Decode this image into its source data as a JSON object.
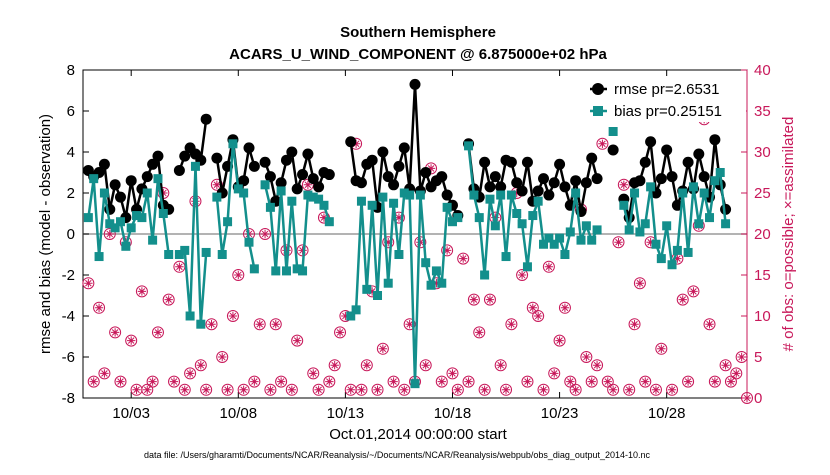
{
  "chart_data": {
    "type": "line",
    "title": "Southern Hemisphere",
    "subtitle": "ACARS_U_WIND_COMPONENT @ 6.875000e+02 hPa",
    "xlabel": "Oct.01,2014 00:00:00 start",
    "ylabel": "rmse and bias (model - observation)",
    "ylabel_right": "# of obs: o=possible; ×=assimilated",
    "footnote": "data file: /Users/gharamti/Documents/NCAR/Reanalysis/~/Documents/NCAR/Reanalysis/webpub/obs_diag_output_2014-10.nc",
    "x_tick_labels": [
      "10/03",
      "10/08",
      "10/13",
      "10/18",
      "10/23",
      "10/28"
    ],
    "x_tick_days": [
      3,
      8,
      13,
      18,
      23,
      28
    ],
    "xlim_days": [
      0.75,
      31.75
    ],
    "ylim": [
      -8,
      8
    ],
    "y_ticks": [
      -8,
      -6,
      -4,
      -2,
      0,
      2,
      4,
      6,
      8
    ],
    "ylim_right": [
      0,
      40
    ],
    "y_ticks_right": [
      0,
      5,
      10,
      15,
      20,
      25,
      30,
      35,
      40
    ],
    "grid": false,
    "legend_position": "top-right",
    "colors": {
      "rmse": "#000000",
      "bias": "#138f8c",
      "obs": "#c8185a",
      "zero_line": "#9a9a9a"
    },
    "sample_step_days": 0.25,
    "series": [
      {
        "name": "rmse pr=2.6531",
        "start_day": 1.0,
        "values": [
          3.1,
          2.8,
          3.0,
          3.4,
          1.2,
          2.4,
          1.8,
          0.8,
          2.6,
          1.2,
          2.2,
          2.8,
          3.4,
          3.8,
          1.4,
          1.2,
          null,
          3.1,
          3.8,
          4.2,
          3.9,
          3.6,
          5.6,
          null,
          3.7,
          2.0,
          3.3,
          4.6,
          2.3,
          2.6,
          4.2,
          3.3,
          null,
          3.5,
          2.8,
          1.6,
          2.5,
          3.6,
          4.0,
          2.2,
          2.9,
          3.9,
          2.7,
          2.3,
          3.0,
          2.9,
          null,
          null,
          null,
          4.5,
          2.6,
          2.5,
          3.4,
          3.6,
          1.3,
          4.0,
          2.8,
          2.4,
          3.3,
          4.2,
          2.2,
          7.3,
          2.1,
          3.0,
          2.3,
          2.6,
          2.8,
          1.9,
          1.4,
          0.9,
          null,
          4.4,
          2.2,
          1.8,
          3.5,
          2.3,
          2.8,
          2.3,
          3.6,
          3.5,
          2.5,
          2.1,
          3.5,
          1.6,
          2.1,
          2.7,
          1.9,
          2.5,
          3.4,
          2.3,
          1.4,
          2.6,
          1.1,
          2.5,
          3.7,
          2.7,
          null,
          null,
          4.1,
          null,
          1.7,
          0.8,
          2.5,
          2.6,
          3.5,
          4.5,
          2.0,
          2.7,
          4.1,
          2.8,
          1.4,
          2.1,
          3.5,
          2.2,
          3.9,
          2.8,
          1.8,
          4.6,
          2.4,
          1.2
        ]
      },
      {
        "name": "bias pr=0.25151",
        "start_day": 1.0,
        "values": [
          0.8,
          2.7,
          -1.1,
          2.0,
          0.5,
          0.3,
          0.6,
          -0.6,
          0.3,
          0.9,
          0.8,
          2.0,
          -0.3,
          2.7,
          1.0,
          -1.0,
          null,
          -1.0,
          -0.8,
          -4.0,
          3.3,
          -4.4,
          -0.9,
          null,
          1.8,
          -1.0,
          0.6,
          4.4,
          2.2,
          2.0,
          -0.4,
          -1.7,
          null,
          2.4,
          1.3,
          -1.8,
          2.1,
          -1.8,
          1.6,
          -1.7,
          -1.8,
          1.9,
          1.8,
          1.7,
          1.4,
          0.6,
          null,
          null,
          null,
          -4.0,
          -3.7,
          1.6,
          -2.7,
          1.4,
          -3.0,
          1.8,
          -2.4,
          1.5,
          -1.0,
          2.0,
          1.9,
          -7.3,
          1.9,
          -1.4,
          -2.5,
          -1.8,
          -2.4,
          1.3,
          0.6,
          0.8,
          null,
          4.3,
          1.9,
          0.8,
          -2.0,
          1.7,
          0.4,
          1.9,
          -1.1,
          1.9,
          1.0,
          0.5,
          -1.6,
          0.9,
          1.6,
          -0.5,
          -0.2,
          -0.5,
          -0.2,
          -1.0,
          0.1,
          2.0,
          -0.3,
          0.4,
          -0.3,
          0.2,
          null,
          null,
          5.0,
          null,
          1.4,
          0.2,
          2.0,
          0.1,
          0.5,
          2.3,
          -0.5,
          -1.2,
          0.4,
          -1.5,
          -0.8,
          2.0,
          -0.9,
          2.3,
          0.5,
          2.0,
          0.8,
          2.6,
          3.0,
          0.5
        ]
      }
    ],
    "obs_possible": [
      {
        "day": 1.0,
        "n": 14
      },
      {
        "day": 1.25,
        "n": 2
      },
      {
        "day": 1.5,
        "n": 11
      },
      {
        "day": 1.75,
        "n": 3
      },
      {
        "day": 2.0,
        "n": 20
      },
      {
        "day": 2.25,
        "n": 8
      },
      {
        "day": 2.5,
        "n": 2
      },
      {
        "day": 2.75,
        "n": 19
      },
      {
        "day": 3.0,
        "n": 7
      },
      {
        "day": 3.25,
        "n": 1
      },
      {
        "day": 3.5,
        "n": 13
      },
      {
        "day": 3.75,
        "n": 1
      },
      {
        "day": 4.0,
        "n": 2
      },
      {
        "day": 4.25,
        "n": 8
      },
      {
        "day": 4.5,
        "n": 25
      },
      {
        "day": 4.75,
        "n": 12
      },
      {
        "day": 5.0,
        "n": 2
      },
      {
        "day": 5.25,
        "n": 16
      },
      {
        "day": 5.5,
        "n": 1
      },
      {
        "day": 5.75,
        "n": 3
      },
      {
        "day": 6.0,
        "n": 24
      },
      {
        "day": 6.25,
        "n": 4
      },
      {
        "day": 6.5,
        "n": 1
      },
      {
        "day": 6.75,
        "n": 9
      },
      {
        "day": 7.0,
        "n": 26
      },
      {
        "day": 7.25,
        "n": 5
      },
      {
        "day": 7.5,
        "n": 1
      },
      {
        "day": 7.75,
        "n": 10
      },
      {
        "day": 8.0,
        "n": 15
      },
      {
        "day": 8.25,
        "n": 1
      },
      {
        "day": 8.5,
        "n": 20
      },
      {
        "day": 8.75,
        "n": 2
      },
      {
        "day": 9.0,
        "n": 9
      },
      {
        "day": 9.25,
        "n": 20
      },
      {
        "day": 9.5,
        "n": 1
      },
      {
        "day": 9.75,
        "n": 9
      },
      {
        "day": 10.0,
        "n": 2
      },
      {
        "day": 10.25,
        "n": 18
      },
      {
        "day": 10.5,
        "n": 1
      },
      {
        "day": 10.75,
        "n": 7
      },
      {
        "day": 11.0,
        "n": 18
      },
      {
        "day": 11.25,
        "n": 26
      },
      {
        "day": 11.5,
        "n": 3
      },
      {
        "day": 11.75,
        "n": 1
      },
      {
        "day": 12.0,
        "n": 22
      },
      {
        "day": 12.25,
        "n": 2
      },
      {
        "day": 12.5,
        "n": 4
      },
      {
        "day": 12.75,
        "n": 8
      },
      {
        "day": 13.0,
        "n": 10
      },
      {
        "day": 13.25,
        "n": 1
      },
      {
        "day": 13.5,
        "n": 31
      },
      {
        "day": 13.75,
        "n": 1
      },
      {
        "day": 14.0,
        "n": 4
      },
      {
        "day": 14.25,
        "n": 13
      },
      {
        "day": 14.5,
        "n": 1
      },
      {
        "day": 14.75,
        "n": 6
      },
      {
        "day": 15.0,
        "n": 19
      },
      {
        "day": 15.25,
        "n": 2
      },
      {
        "day": 15.5,
        "n": 22
      },
      {
        "day": 15.75,
        "n": 1
      },
      {
        "day": 16.0,
        "n": 9
      },
      {
        "day": 16.25,
        "n": 2
      },
      {
        "day": 16.5,
        "n": 19
      },
      {
        "day": 16.75,
        "n": 4
      },
      {
        "day": 17.0,
        "n": 28
      },
      {
        "day": 17.25,
        "n": 14
      },
      {
        "day": 17.5,
        "n": 2
      },
      {
        "day": 17.75,
        "n": 18
      },
      {
        "day": 18.0,
        "n": 3
      },
      {
        "day": 18.25,
        "n": 1
      },
      {
        "day": 18.5,
        "n": 17
      },
      {
        "day": 18.75,
        "n": 2
      },
      {
        "day": 19.0,
        "n": 12
      },
      {
        "day": 19.25,
        "n": 8
      },
      {
        "day": 19.5,
        "n": 1
      },
      {
        "day": 19.75,
        "n": 12
      },
      {
        "day": 20.0,
        "n": 22
      },
      {
        "day": 20.25,
        "n": 4
      },
      {
        "day": 20.5,
        "n": 1
      },
      {
        "day": 20.75,
        "n": 9
      },
      {
        "day": 21.0,
        "n": 25
      },
      {
        "day": 21.25,
        "n": 15
      },
      {
        "day": 21.5,
        "n": 2
      },
      {
        "day": 21.75,
        "n": 11
      },
      {
        "day": 22.0,
        "n": 10
      },
      {
        "day": 22.25,
        "n": 1
      },
      {
        "day": 22.5,
        "n": 16
      },
      {
        "day": 22.75,
        "n": 3
      },
      {
        "day": 23.0,
        "n": 7
      },
      {
        "day": 23.25,
        "n": 11
      },
      {
        "day": 23.5,
        "n": 2
      },
      {
        "day": 23.75,
        "n": 1
      },
      {
        "day": 24.0,
        "n": 23
      },
      {
        "day": 24.25,
        "n": 5
      },
      {
        "day": 24.5,
        "n": 2
      },
      {
        "day": 24.75,
        "n": 4
      },
      {
        "day": 25.0,
        "n": 31
      },
      {
        "day": 25.25,
        "n": 2
      },
      {
        "day": 25.5,
        "n": 1
      },
      {
        "day": 25.75,
        "n": 19
      },
      {
        "day": 26.0,
        "n": 26
      },
      {
        "day": 26.25,
        "n": 1
      },
      {
        "day": 26.5,
        "n": 9
      },
      {
        "day": 26.75,
        "n": 14
      },
      {
        "day": 27.0,
        "n": 2
      },
      {
        "day": 27.25,
        "n": 19
      },
      {
        "day": 27.5,
        "n": 1
      },
      {
        "day": 27.75,
        "n": 6
      },
      {
        "day": 28.0,
        "n": 35
      },
      {
        "day": 28.25,
        "n": 1
      },
      {
        "day": 28.5,
        "n": 17
      },
      {
        "day": 28.75,
        "n": 12
      },
      {
        "day": 29.0,
        "n": 2
      },
      {
        "day": 29.25,
        "n": 13
      },
      {
        "day": 29.5,
        "n": 21
      },
      {
        "day": 29.75,
        "n": 34
      },
      {
        "day": 30.0,
        "n": 9
      },
      {
        "day": 30.25,
        "n": 2
      },
      {
        "day": 30.5,
        "n": 37
      },
      {
        "day": 30.75,
        "n": 4
      },
      {
        "day": 31.0,
        "n": 2
      },
      {
        "day": 31.25,
        "n": 3
      },
      {
        "day": 31.5,
        "n": 5
      },
      {
        "day": 31.75,
        "n": 0
      }
    ]
  }
}
